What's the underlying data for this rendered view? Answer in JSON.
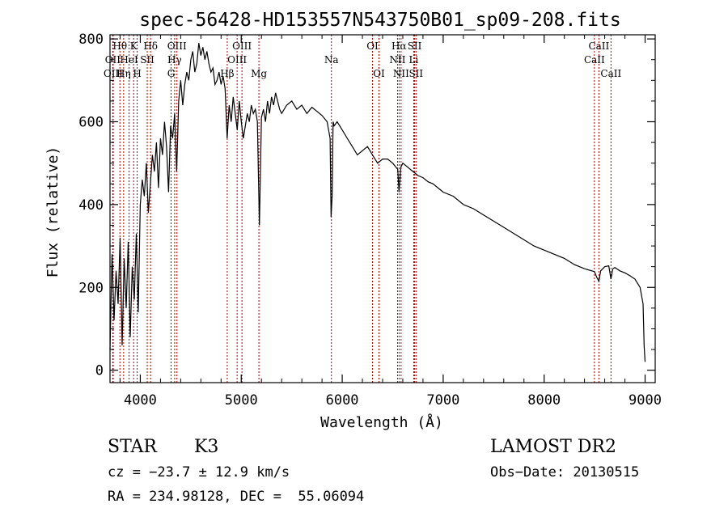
{
  "chart_data": {
    "type": "line",
    "title": "spec-56428-HD153557N543750B01_sp09-208.fits",
    "xlabel": "Wavelength (Å)",
    "ylabel": "Flux (relative)",
    "xlim": [
      3700,
      9100
    ],
    "ylim": [
      -30,
      810
    ],
    "xticks": [
      4000,
      5000,
      6000,
      7000,
      8000,
      9000
    ],
    "yticks": [
      0,
      200,
      400,
      600,
      800
    ],
    "line_color": "#000000",
    "marker_color": "#aa0000",
    "spectrum": {
      "x": [
        3700,
        3720,
        3740,
        3760,
        3780,
        3800,
        3820,
        3840,
        3860,
        3880,
        3900,
        3920,
        3940,
        3960,
        3980,
        4000,
        4020,
        4040,
        4060,
        4080,
        4100,
        4120,
        4140,
        4160,
        4180,
        4200,
        4220,
        4240,
        4260,
        4280,
        4300,
        4320,
        4340,
        4360,
        4380,
        4400,
        4420,
        4440,
        4460,
        4480,
        4500,
        4520,
        4540,
        4560,
        4580,
        4600,
        4620,
        4640,
        4660,
        4680,
        4700,
        4720,
        4740,
        4760,
        4780,
        4800,
        4820,
        4840,
        4860,
        4880,
        4900,
        4920,
        4940,
        4960,
        4980,
        5000,
        5020,
        5040,
        5060,
        5080,
        5100,
        5120,
        5140,
        5160,
        5180,
        5200,
        5220,
        5240,
        5260,
        5280,
        5300,
        5320,
        5340,
        5360,
        5380,
        5400,
        5450,
        5500,
        5550,
        5600,
        5650,
        5700,
        5750,
        5800,
        5850,
        5880,
        5890,
        5900,
        5910,
        5920,
        5950,
        6000,
        6050,
        6100,
        6150,
        6200,
        6250,
        6300,
        6350,
        6400,
        6450,
        6500,
        6550,
        6563,
        6580,
        6600,
        6650,
        6700,
        6750,
        6800,
        6850,
        6900,
        6950,
        7000,
        7100,
        7200,
        7300,
        7400,
        7500,
        7600,
        7700,
        7800,
        7900,
        8000,
        8100,
        8200,
        8300,
        8400,
        8498,
        8520,
        8542,
        8560,
        8600,
        8640,
        8662,
        8680,
        8700,
        8750,
        8800,
        8850,
        8900,
        8950,
        8980,
        8990,
        9000
      ],
      "y": [
        50,
        280,
        120,
        240,
        160,
        320,
        60,
        270,
        150,
        310,
        80,
        250,
        170,
        330,
        140,
        400,
        460,
        420,
        500,
        380,
        450,
        520,
        480,
        550,
        440,
        560,
        520,
        600,
        540,
        430,
        590,
        560,
        620,
        480,
        650,
        700,
        640,
        690,
        720,
        700,
        750,
        770,
        720,
        740,
        790,
        760,
        780,
        750,
        770,
        740,
        720,
        730,
        690,
        700,
        720,
        690,
        710,
        680,
        560,
        640,
        600,
        660,
        620,
        580,
        650,
        600,
        560,
        590,
        620,
        600,
        640,
        620,
        630,
        600,
        350,
        610,
        630,
        600,
        650,
        620,
        660,
        640,
        670,
        650,
        630,
        620,
        640,
        650,
        630,
        640,
        620,
        635,
        625,
        615,
        600,
        560,
        370,
        420,
        600,
        590,
        600,
        580,
        560,
        540,
        520,
        530,
        540,
        520,
        500,
        510,
        510,
        500,
        485,
        430,
        490,
        500,
        490,
        480,
        470,
        465,
        455,
        450,
        440,
        430,
        420,
        400,
        390,
        375,
        360,
        345,
        330,
        315,
        300,
        290,
        280,
        270,
        255,
        245,
        238,
        225,
        215,
        240,
        250,
        252,
        220,
        245,
        248,
        240,
        235,
        228,
        220,
        200,
        160,
        60,
        20
      ]
    },
    "lines": [
      {
        "name": "Hθ",
        "wl": 3798,
        "row": 1
      },
      {
        "name": "OII",
        "wl": 3727,
        "row": 2
      },
      {
        "name": "OIII",
        "wl": 3732,
        "row": 3
      },
      {
        "name": "K",
        "wl": 3934,
        "row": 1
      },
      {
        "name": "HeI",
        "wl": 3889,
        "row": 2
      },
      {
        "name": "Hη",
        "wl": 3835,
        "row": 3
      },
      {
        "name": "Hδ",
        "wl": 4102,
        "row": 1
      },
      {
        "name": "SII",
        "wl": 4069,
        "row": 2
      },
      {
        "name": "H",
        "wl": 3969,
        "row": 3
      },
      {
        "name": "OIII",
        "wl": 4363,
        "row": 1
      },
      {
        "name": "Hγ",
        "wl": 4340,
        "row": 2
      },
      {
        "name": "G",
        "wl": 4305,
        "row": 3
      },
      {
        "name": "OIII",
        "wl": 5007,
        "row": 1
      },
      {
        "name": "OIII",
        "wl": 4959,
        "row": 2
      },
      {
        "name": "Hβ",
        "wl": 4861,
        "row": 3
      },
      {
        "name": "Mg",
        "wl": 5175,
        "row": 3
      },
      {
        "name": "Na",
        "wl": 5893,
        "row": 2
      },
      {
        "name": "OI",
        "wl": 6300,
        "row": 1
      },
      {
        "name": "OI",
        "wl": 6364,
        "row": 3
      },
      {
        "name": "Hα",
        "wl": 6563,
        "row": 1
      },
      {
        "name": "NII",
        "wl": 6548,
        "row": 2
      },
      {
        "name": "NII",
        "wl": 6583,
        "row": 3
      },
      {
        "name": "SII",
        "wl": 6717,
        "row": 1
      },
      {
        "name": "Li",
        "wl": 6708,
        "row": 2
      },
      {
        "name": "SII",
        "wl": 6731,
        "row": 3
      },
      {
        "name": "CaII",
        "wl": 8542,
        "row": 1
      },
      {
        "name": "CaII",
        "wl": 8498,
        "row": 2
      },
      {
        "name": "CaII",
        "wl": 8662,
        "row": 3
      }
    ]
  },
  "info": {
    "class_label": "STAR",
    "subclass": "K3",
    "survey": "LAMOST DR2",
    "cz": "cz = −23.7 ± 12.9 km/s",
    "obs_date": "Obs−Date: 20130515",
    "coords": "RA = 234.98128, DEC =  55.06094"
  }
}
